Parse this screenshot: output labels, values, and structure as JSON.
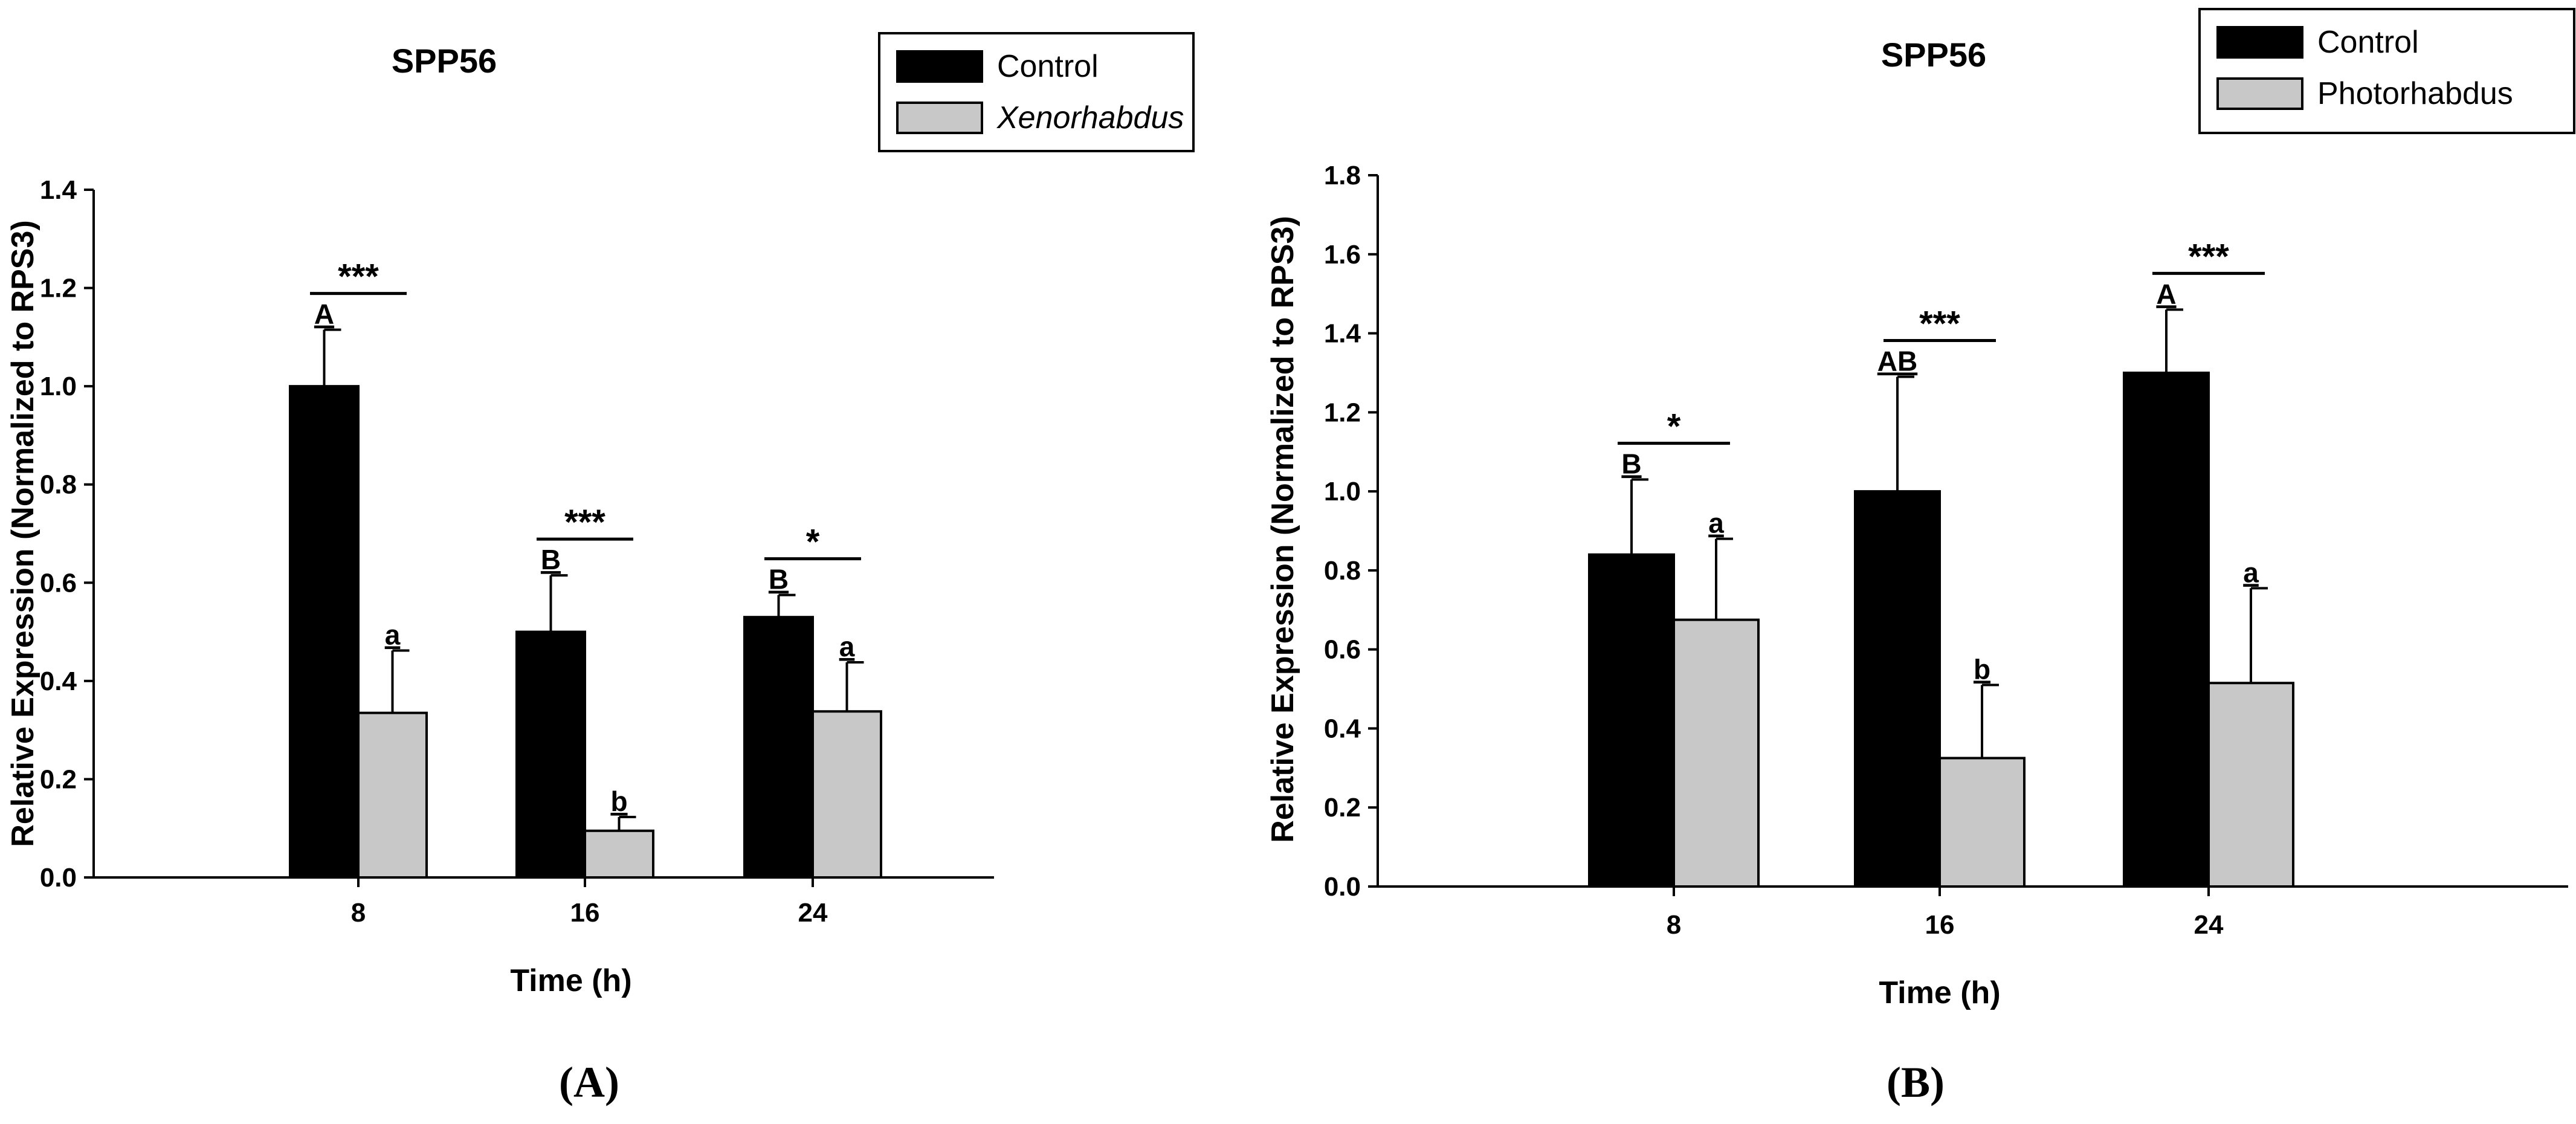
{
  "chart_data": [
    {
      "panel": "A",
      "type": "bar",
      "title": "SPP56",
      "xlabel": "Time (h)",
      "ylabel": "Relative Expression (Normalized to RPS3)",
      "ylim": [
        0,
        1.4
      ],
      "yticks": [
        "0.0",
        "0.2",
        "0.4",
        "0.6",
        "0.8",
        "1.0",
        "1.2",
        "1.4"
      ],
      "categories": [
        "8",
        "16",
        "24"
      ],
      "legend_position": "top-right",
      "series": [
        {
          "name": "Control",
          "italic": false,
          "color": "#000000",
          "values": [
            1.0,
            0.5,
            0.53
          ],
          "errors": [
            0.115,
            0.115,
            0.045
          ],
          "letters": [
            "A",
            "B",
            "B"
          ]
        },
        {
          "name": "Xenorhabdus",
          "italic": true,
          "color": "#c8c8c8",
          "values": [
            0.335,
            0.095,
            0.338
          ],
          "errors": [
            0.127,
            0.028,
            0.1
          ],
          "letters": [
            "a",
            "b",
            "a"
          ]
        }
      ],
      "significance": [
        "***",
        "***",
        "*"
      ]
    },
    {
      "panel": "B",
      "type": "bar",
      "title": "SPP56",
      "xlabel": "Time (h)",
      "ylabel": "Relative Expression (Normalized to RPS3)",
      "ylim": [
        0,
        1.8
      ],
      "yticks": [
        "0.0",
        "0.2",
        "0.4",
        "0.6",
        "0.8",
        "1.0",
        "1.2",
        "1.4",
        "1.6",
        "1.8"
      ],
      "categories": [
        "8",
        "16",
        "24"
      ],
      "legend_position": "top-right",
      "series": [
        {
          "name": "Control",
          "italic": false,
          "color": "#000000",
          "values": [
            0.84,
            1.0,
            1.3
          ],
          "errors": [
            0.19,
            0.29,
            0.16
          ],
          "letters": [
            "B",
            "AB",
            "A"
          ]
        },
        {
          "name": "Photorhabdus",
          "italic": false,
          "color": "#c8c8c8",
          "values": [
            0.675,
            0.325,
            0.515
          ],
          "errors": [
            0.205,
            0.185,
            0.24
          ],
          "letters": [
            "a",
            "b",
            "a"
          ]
        }
      ],
      "significance": [
        "*",
        "***",
        "***"
      ]
    }
  ],
  "panel_labels": [
    "(A)",
    "(B)"
  ]
}
